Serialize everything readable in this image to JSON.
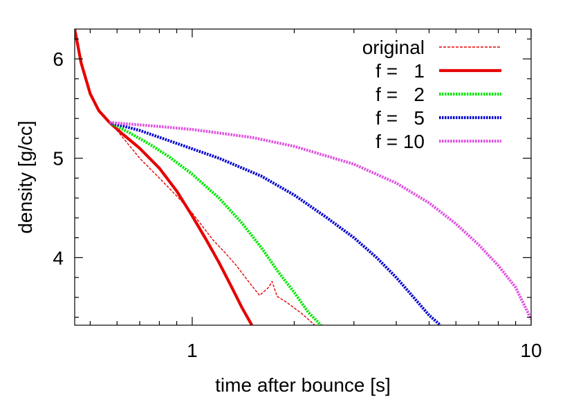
{
  "chart_data": {
    "type": "line",
    "xlabel": "time after bounce [s]",
    "ylabel": "density [g/cc]",
    "xscale": "log",
    "xlim": [
      0.45,
      10
    ],
    "ylim": [
      3.32,
      6.3
    ],
    "xticks": [
      {
        "value": 1,
        "label": "1"
      },
      {
        "value": 10,
        "label": "10"
      }
    ],
    "yticks": [
      {
        "value": 4,
        "label": "4"
      },
      {
        "value": 5,
        "label": "5"
      },
      {
        "value": 6,
        "label": "6"
      }
    ],
    "grid": false,
    "legend_position": "top-right",
    "series": [
      {
        "name": "original",
        "color": "#e60000",
        "style": "thin-dashed",
        "x": [
          0.45,
          0.47,
          0.5,
          0.53,
          0.57,
          0.6,
          0.7,
          0.8,
          0.9,
          1.0,
          1.15,
          1.25,
          1.35,
          1.45,
          1.58,
          1.68,
          1.72,
          1.78,
          1.9,
          2.1,
          2.3
        ],
        "y": [
          6.3,
          5.96,
          5.65,
          5.48,
          5.36,
          5.28,
          5.0,
          4.8,
          4.62,
          4.45,
          4.18,
          4.05,
          3.92,
          3.78,
          3.62,
          3.7,
          3.76,
          3.61,
          3.55,
          3.44,
          3.32
        ]
      },
      {
        "name": "f =   1",
        "color": "#e60000",
        "style": "thick-solid",
        "x": [
          0.45,
          0.47,
          0.5,
          0.53,
          0.57,
          0.62,
          0.7,
          0.8,
          0.9,
          1.0,
          1.1,
          1.2,
          1.3,
          1.4,
          1.5
        ],
        "y": [
          6.3,
          5.96,
          5.65,
          5.48,
          5.36,
          5.25,
          5.1,
          4.9,
          4.67,
          4.42,
          4.18,
          3.95,
          3.72,
          3.5,
          3.32
        ]
      },
      {
        "name": "f =   2",
        "color": "#00e600",
        "style": "dotted",
        "x": [
          0.57,
          0.65,
          0.75,
          0.85,
          1.0,
          1.2,
          1.4,
          1.6,
          1.8,
          2.0,
          2.2,
          2.4
        ],
        "y": [
          5.36,
          5.26,
          5.14,
          5.02,
          4.84,
          4.6,
          4.35,
          4.1,
          3.85,
          3.65,
          3.45,
          3.32
        ]
      },
      {
        "name": "f =   5",
        "color": "#0000d0",
        "style": "dotted",
        "x": [
          0.57,
          0.7,
          0.9,
          1.2,
          1.6,
          2.0,
          2.5,
          3.0,
          3.5,
          4.0,
          4.5,
          5.0,
          5.4
        ],
        "y": [
          5.36,
          5.28,
          5.15,
          5.0,
          4.82,
          4.63,
          4.4,
          4.2,
          4.0,
          3.8,
          3.6,
          3.42,
          3.32
        ]
      },
      {
        "name": "f = 10",
        "color": "#e050e0",
        "style": "dotted",
        "x": [
          0.57,
          0.8,
          1.0,
          1.5,
          2.0,
          3.0,
          4.0,
          5.0,
          6.0,
          7.0,
          8.0,
          9.0,
          10.0
        ],
        "y": [
          5.36,
          5.32,
          5.29,
          5.21,
          5.12,
          4.94,
          4.75,
          4.55,
          4.34,
          4.13,
          3.92,
          3.7,
          3.38
        ]
      }
    ]
  }
}
